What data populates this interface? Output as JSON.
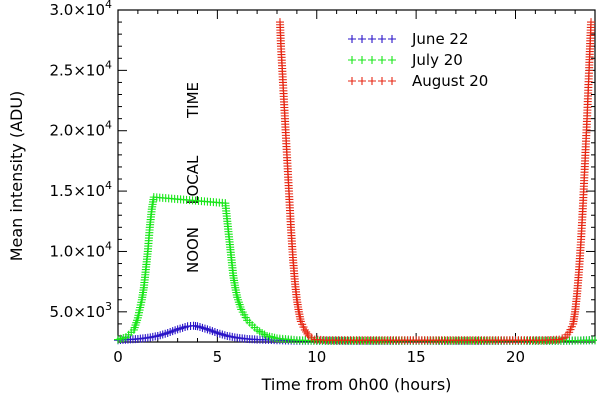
{
  "chart_data": {
    "type": "scatter",
    "xlabel": "Time from 0h00 (hours)",
    "ylabel": "Mean intensity (ADU)",
    "xlim": [
      0,
      24
    ],
    "ylim": [
      2500,
      30000
    ],
    "grid": false,
    "legend_position": "top-right",
    "xticks": [
      {
        "value": 0,
        "label": "0"
      },
      {
        "value": 5,
        "label": "5"
      },
      {
        "value": 10,
        "label": "10"
      },
      {
        "value": 15,
        "label": "15"
      },
      {
        "value": 20,
        "label": "20"
      }
    ],
    "yticks": [
      {
        "value": 5000,
        "mantissa": "5.0",
        "exp": "3"
      },
      {
        "value": 10000,
        "mantissa": "1.0",
        "exp": "4"
      },
      {
        "value": 15000,
        "mantissa": "1.5",
        "exp": "4"
      },
      {
        "value": 20000,
        "mantissa": "2.0",
        "exp": "4"
      },
      {
        "value": 25000,
        "mantissa": "2.5",
        "exp": "4"
      },
      {
        "value": 30000,
        "mantissa": "3.0",
        "exp": "4"
      }
    ],
    "y_tick_times": "×10",
    "annotation": [
      "NOON",
      "LOCAL",
      "TIME"
    ],
    "series": [
      {
        "name": "June 22",
        "color": "#2a14c8",
        "points": [
          [
            0.0,
            2650
          ],
          [
            0.5,
            2700
          ],
          [
            1.0,
            2750
          ],
          [
            1.5,
            2850
          ],
          [
            2.0,
            3000
          ],
          [
            2.5,
            3250
          ],
          [
            3.0,
            3550
          ],
          [
            3.5,
            3800
          ],
          [
            3.8,
            3850
          ],
          [
            4.0,
            3800
          ],
          [
            4.5,
            3550
          ],
          [
            5.0,
            3250
          ],
          [
            5.5,
            3000
          ],
          [
            6.0,
            2850
          ],
          [
            6.5,
            2750
          ],
          [
            7.0,
            2700
          ],
          [
            8.0,
            2650
          ],
          [
            9.0,
            2600
          ],
          [
            10.0,
            2600
          ],
          [
            11.0,
            2600
          ],
          [
            12.0,
            2600
          ],
          [
            13.0,
            2600
          ],
          [
            14.0,
            2600
          ],
          [
            15.0,
            2600
          ],
          [
            16.0,
            2600
          ],
          [
            17.0,
            2600
          ],
          [
            18.0,
            2600
          ],
          [
            19.0,
            2600
          ],
          [
            20.0,
            2600
          ],
          [
            21.0,
            2600
          ],
          [
            22.0,
            2600
          ],
          [
            23.0,
            2620
          ],
          [
            24.0,
            2650
          ]
        ]
      },
      {
        "name": "July 20",
        "color": "#19e619",
        "points": [
          [
            0.0,
            2700
          ],
          [
            0.4,
            2900
          ],
          [
            0.8,
            3500
          ],
          [
            1.0,
            4500
          ],
          [
            1.2,
            6000
          ],
          [
            1.3,
            7000
          ],
          [
            1.4,
            8500
          ],
          [
            1.5,
            10000
          ],
          [
            1.6,
            12000
          ],
          [
            1.7,
            13500
          ],
          [
            1.8,
            14500
          ],
          [
            5.4,
            14000
          ],
          [
            5.5,
            12500
          ],
          [
            5.6,
            11000
          ],
          [
            5.7,
            9500
          ],
          [
            5.8,
            8000
          ],
          [
            5.9,
            7000
          ],
          [
            6.0,
            6200
          ],
          [
            6.2,
            5200
          ],
          [
            6.5,
            4300
          ],
          [
            7.0,
            3500
          ],
          [
            7.5,
            3000
          ],
          [
            8.0,
            2800
          ],
          [
            9.0,
            2650
          ],
          [
            10.0,
            2600
          ],
          [
            15.0,
            2600
          ],
          [
            20.0,
            2600
          ],
          [
            22.0,
            2600
          ],
          [
            23.0,
            2620
          ],
          [
            24.0,
            2650
          ]
        ]
      },
      {
        "name": "August 20",
        "color": "#e62814",
        "points": [
          [
            8.15,
            29000
          ],
          [
            8.2,
            27000
          ],
          [
            8.3,
            24000
          ],
          [
            8.4,
            21000
          ],
          [
            8.5,
            18000
          ],
          [
            8.6,
            15000
          ],
          [
            8.7,
            12000
          ],
          [
            8.8,
            9500
          ],
          [
            8.9,
            7500
          ],
          [
            9.0,
            6000
          ],
          [
            9.1,
            5000
          ],
          [
            9.2,
            4200
          ],
          [
            9.4,
            3500
          ],
          [
            9.6,
            3000
          ],
          [
            9.9,
            2700
          ],
          [
            10.5,
            2650
          ],
          [
            12.0,
            2650
          ],
          [
            14.0,
            2650
          ],
          [
            16.0,
            2650
          ],
          [
            18.0,
            2650
          ],
          [
            20.0,
            2650
          ],
          [
            21.5,
            2650
          ],
          [
            22.2,
            2700
          ],
          [
            22.5,
            2900
          ],
          [
            22.7,
            3300
          ],
          [
            22.9,
            4000
          ],
          [
            23.0,
            5000
          ],
          [
            23.1,
            6500
          ],
          [
            23.2,
            8500
          ],
          [
            23.3,
            11000
          ],
          [
            23.4,
            14000
          ],
          [
            23.5,
            17500
          ],
          [
            23.6,
            21000
          ],
          [
            23.7,
            25000
          ],
          [
            23.75,
            27000
          ],
          [
            23.8,
            29000
          ]
        ]
      }
    ]
  }
}
